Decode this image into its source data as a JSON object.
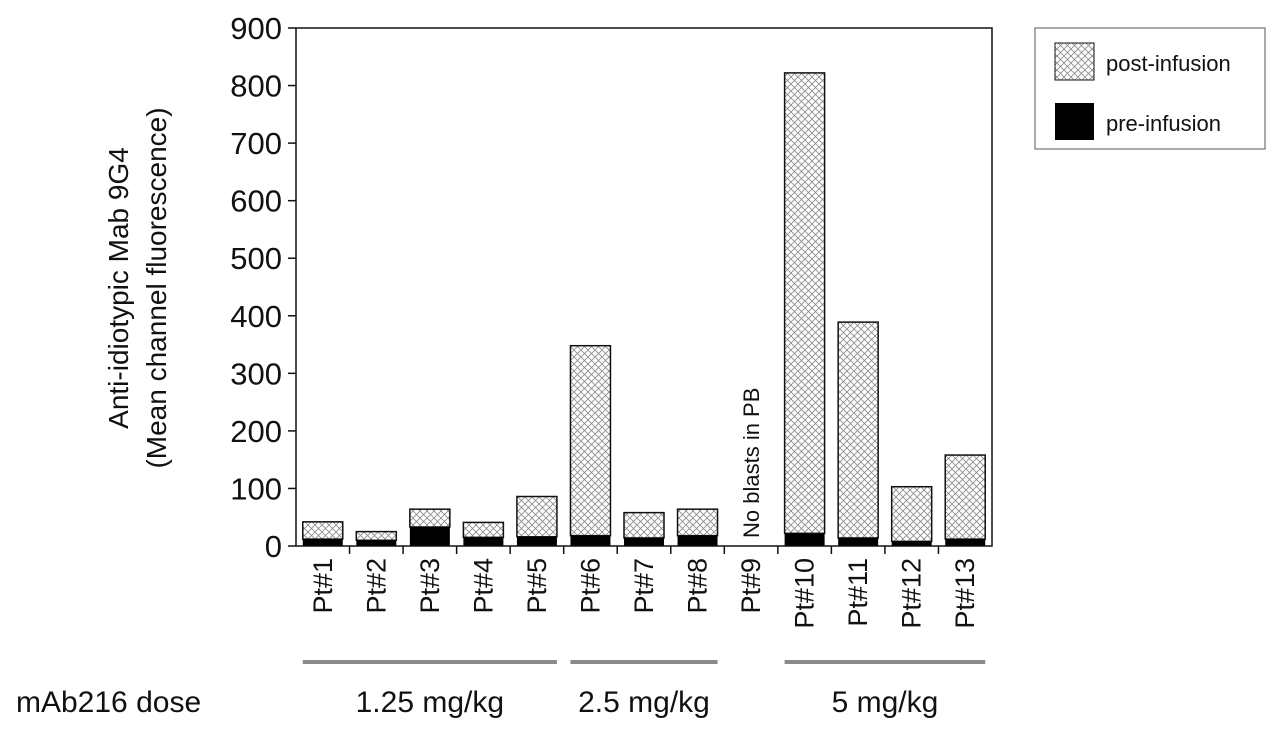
{
  "chart_data": {
    "type": "bar",
    "stacked": true,
    "ylabel": "Anti-idiotypic Mab 9G4",
    "ylabel2": "(Mean channel fluorescence)",
    "ylim": [
      0,
      900
    ],
    "yticks": [
      0,
      100,
      200,
      300,
      400,
      500,
      600,
      700,
      800,
      900
    ],
    "categories": [
      "Pt#1",
      "Pt#2",
      "Pt#3",
      "Pt#4",
      "Pt#5",
      "Pt#6",
      "Pt#7",
      "Pt#8",
      "Pt#9",
      "Pt#10",
      "Pt#11",
      "Pt#12",
      "Pt#13"
    ],
    "series": [
      {
        "name": "pre-infusion",
        "color": "#000000",
        "fill": "solid",
        "values": [
          12,
          10,
          33,
          15,
          16,
          18,
          14,
          18,
          0,
          22,
          14,
          8,
          12
        ]
      },
      {
        "name": "post-infusion",
        "color": "#ffffff",
        "fill": "crosshatch",
        "values": [
          30,
          15,
          31,
          26,
          70,
          330,
          44,
          46,
          0,
          800,
          375,
          95,
          146
        ]
      }
    ],
    "annotation": "No blasts in PB",
    "annotation_category": "Pt#9",
    "legend_position": "top-right",
    "grid": false,
    "dose_label": "mAb216 dose",
    "dose_groups": [
      {
        "label": "1.25 mg/kg",
        "from": "Pt#1",
        "to": "Pt#5"
      },
      {
        "label": "2.5 mg/kg",
        "from": "Pt#6",
        "to": "Pt#8"
      },
      {
        "label": "5 mg/kg",
        "from": "Pt#10",
        "to": "Pt#13"
      }
    ]
  }
}
